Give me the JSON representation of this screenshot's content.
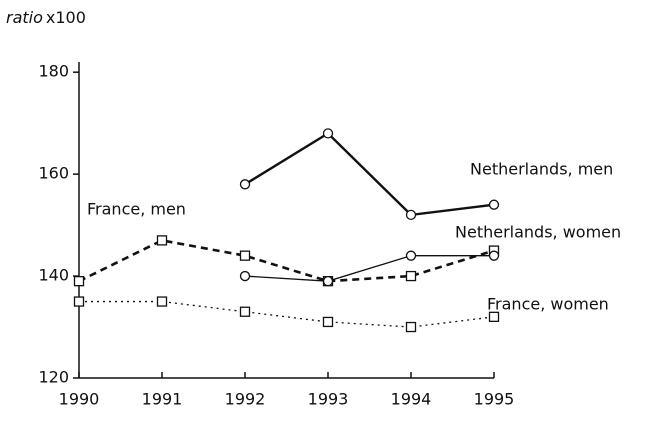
{
  "chart_data": {
    "type": "line",
    "ylabel": "ratio",
    "ylabel_unit": "x100",
    "x": [
      1990,
      1991,
      1992,
      1993,
      1994,
      1995
    ],
    "xlim": [
      1990,
      1995
    ],
    "xticks": [
      1990,
      1991,
      1992,
      1993,
      1994,
      1995
    ],
    "ylim": [
      120,
      182
    ],
    "yticks": [
      120,
      140,
      160,
      180
    ],
    "series": [
      {
        "name": "Netherlands, men",
        "color": "#111",
        "style": "solid",
        "width": 2.4,
        "marker": "circle",
        "values": [
          null,
          null,
          158,
          168,
          152,
          154
        ]
      },
      {
        "name": "France, men",
        "color": "#111",
        "style": "dashed",
        "width": 2.6,
        "marker": "square",
        "values": [
          139,
          147,
          144,
          139,
          140,
          145
        ]
      },
      {
        "name": "Netherlands, women",
        "color": "#111",
        "style": "solid",
        "width": 1.3,
        "marker": "circle",
        "values": [
          null,
          null,
          140,
          139,
          144,
          144
        ]
      },
      {
        "name": "France, women",
        "color": "#111",
        "style": "dotted",
        "width": 1.3,
        "marker": "square",
        "values": [
          135,
          135,
          133,
          131,
          130,
          132
        ]
      }
    ]
  }
}
